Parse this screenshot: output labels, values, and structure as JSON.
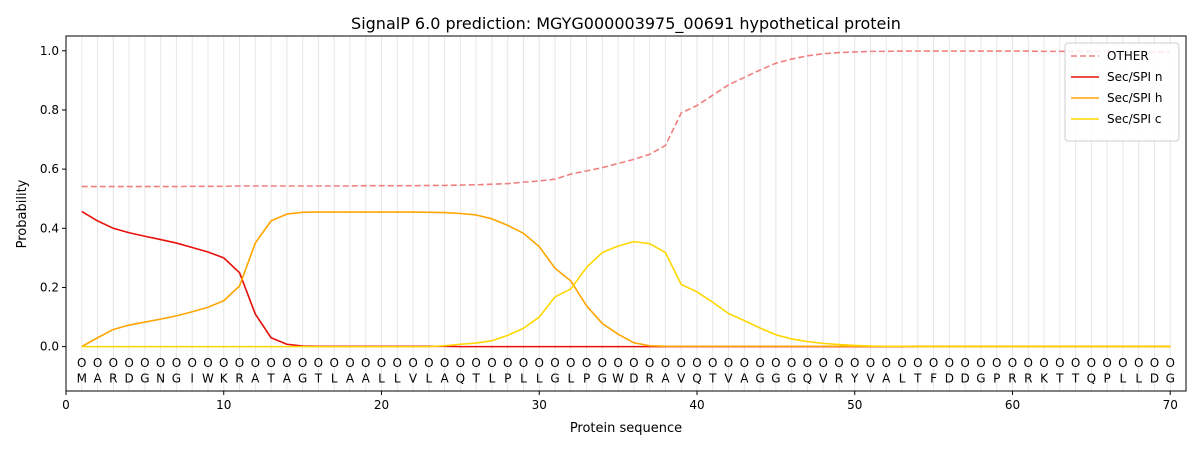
{
  "chart_data": {
    "type": "line",
    "title": "SignalP 6.0 prediction: MGYG000003975_00691 hypothetical protein",
    "xlabel": "Protein sequence",
    "ylabel": "Probability",
    "xlim": [
      0,
      71
    ],
    "ylim": [
      -0.15,
      1.05
    ],
    "x_ticks": [
      0,
      10,
      20,
      30,
      40,
      50,
      60,
      70
    ],
    "y_ticks": [
      0.0,
      0.2,
      0.4,
      0.6,
      0.8,
      1.0
    ],
    "y_tick_labels": [
      "0.0",
      "0.2",
      "0.4",
      "0.6",
      "0.8",
      "1.0"
    ],
    "grid": "vertical lines at each residue",
    "legend_position": "top-right",
    "sequence": [
      "M",
      "A",
      "R",
      "D",
      "G",
      "N",
      "G",
      "I",
      "W",
      "K",
      "R",
      "A",
      "T",
      "A",
      "G",
      "T",
      "L",
      "A",
      "A",
      "L",
      "L",
      "V",
      "L",
      "A",
      "Q",
      "T",
      "L",
      "P",
      "L",
      "L",
      "G",
      "L",
      "P",
      "G",
      "W",
      "D",
      "R",
      "A",
      "V",
      "Q",
      "T",
      "V",
      "A",
      "G",
      "G",
      "G",
      "Q",
      "V",
      "R",
      "Y",
      "V",
      "A",
      "L",
      "T",
      "F",
      "D",
      "D",
      "G",
      "P",
      "R",
      "R",
      "K",
      "T",
      "T",
      "Q",
      "P",
      "L",
      "L",
      "D",
      "G"
    ],
    "region_labels": [
      "O",
      "O",
      "O",
      "O",
      "O",
      "O",
      "O",
      "O",
      "O",
      "O",
      "O",
      "O",
      "O",
      "O",
      "O",
      "O",
      "O",
      "O",
      "O",
      "O",
      "O",
      "O",
      "O",
      "O",
      "O",
      "O",
      "O",
      "O",
      "O",
      "O",
      "O",
      "O",
      "O",
      "O",
      "O",
      "O",
      "O",
      "O",
      "O",
      "O",
      "O",
      "O",
      "O",
      "O",
      "O",
      "O",
      "O",
      "O",
      "O",
      "O",
      "O",
      "O",
      "O",
      "O",
      "O",
      "O",
      "O",
      "O",
      "O",
      "O",
      "O",
      "O",
      "O",
      "O",
      "O",
      "O",
      "O",
      "O",
      "O",
      "O"
    ],
    "series": [
      {
        "name": "OTHER",
        "color": "#f08080",
        "dashed": true,
        "values": [
          0.541,
          0.541,
          0.541,
          0.541,
          0.541,
          0.541,
          0.541,
          0.542,
          0.542,
          0.542,
          0.543,
          0.543,
          0.543,
          0.543,
          0.543,
          0.543,
          0.543,
          0.543,
          0.544,
          0.544,
          0.544,
          0.544,
          0.545,
          0.545,
          0.546,
          0.547,
          0.549,
          0.551,
          0.556,
          0.56,
          0.566,
          0.583,
          0.594,
          0.605,
          0.619,
          0.633,
          0.65,
          0.68,
          0.79,
          0.815,
          0.85,
          0.885,
          0.91,
          0.935,
          0.958,
          0.972,
          0.983,
          0.99,
          0.994,
          0.996,
          0.998,
          0.998,
          0.999,
          0.999,
          0.999,
          0.999,
          0.999,
          0.999,
          0.999,
          0.999,
          0.999,
          0.998,
          0.998,
          0.998,
          0.998,
          0.998,
          0.997,
          0.997,
          0.997,
          0.997
        ]
      },
      {
        "name": "Sec/SPI n",
        "color": "#e8100a",
        "dashed": false,
        "values": [
          0.457,
          0.425,
          0.4,
          0.385,
          0.373,
          0.362,
          0.35,
          0.335,
          0.32,
          0.3,
          0.25,
          0.11,
          0.03,
          0.008,
          0.002,
          0.001,
          0.001,
          0.001,
          0.001,
          0.001,
          0.001,
          0.001,
          0.001,
          0.001,
          0.0,
          0.0,
          0.0,
          0.0,
          0.0,
          0.0,
          0.0,
          0.0,
          0.0,
          0.0,
          0.0,
          0.0,
          0.0,
          0.0,
          0.0,
          0.0,
          0.0,
          0.0,
          0.0,
          0.0,
          0.0,
          0.0,
          0.0,
          0.0,
          0.0,
          0.0,
          0.0,
          0.0,
          0.0,
          0.0,
          0.0,
          0.0,
          0.0,
          0.0,
          0.0,
          0.0,
          0.0,
          0.0,
          0.0,
          0.0,
          0.0,
          0.0,
          0.0,
          0.0,
          0.0,
          0.0
        ]
      },
      {
        "name": "Sec/SPI h",
        "color": "#ffa500",
        "dashed": false,
        "values": [
          0.0,
          0.03,
          0.058,
          0.073,
          0.083,
          0.093,
          0.104,
          0.118,
          0.133,
          0.155,
          0.205,
          0.35,
          0.425,
          0.448,
          0.454,
          0.455,
          0.455,
          0.455,
          0.455,
          0.455,
          0.455,
          0.455,
          0.454,
          0.453,
          0.45,
          0.445,
          0.432,
          0.41,
          0.383,
          0.338,
          0.265,
          0.222,
          0.138,
          0.078,
          0.042,
          0.013,
          0.003,
          0.001,
          0.001,
          0.001,
          0.001,
          0.001,
          0.001,
          0.001,
          0.001,
          0.001,
          0.001,
          0.001,
          0.001,
          0.001,
          0.001,
          0.001,
          0.001,
          0.001,
          0.001,
          0.001,
          0.001,
          0.001,
          0.001,
          0.001,
          0.001,
          0.001,
          0.001,
          0.001,
          0.001,
          0.001,
          0.001,
          0.001,
          0.001,
          0.001
        ]
      },
      {
        "name": "Sec/SPI c",
        "color": "#ffd700",
        "dashed": false,
        "values": [
          0.0,
          0.0,
          0.0,
          0.0,
          0.0,
          0.0,
          0.0,
          0.0,
          0.0,
          0.0,
          0.0,
          0.0,
          0.0,
          0.0,
          0.0,
          0.0,
          0.0,
          0.0,
          0.0,
          0.0,
          0.0,
          0.0,
          0.0,
          0.003,
          0.008,
          0.012,
          0.02,
          0.038,
          0.062,
          0.1,
          0.168,
          0.195,
          0.268,
          0.318,
          0.34,
          0.355,
          0.348,
          0.318,
          0.21,
          0.185,
          0.15,
          0.112,
          0.088,
          0.063,
          0.04,
          0.026,
          0.017,
          0.011,
          0.007,
          0.004,
          0.002,
          0.001,
          0.001,
          0.0,
          0.0,
          0.0,
          0.0,
          0.0,
          0.0,
          0.0,
          0.0,
          0.0,
          0.0,
          0.0,
          0.0,
          0.0,
          0.0,
          0.0,
          0.0,
          0.0
        ]
      }
    ]
  }
}
